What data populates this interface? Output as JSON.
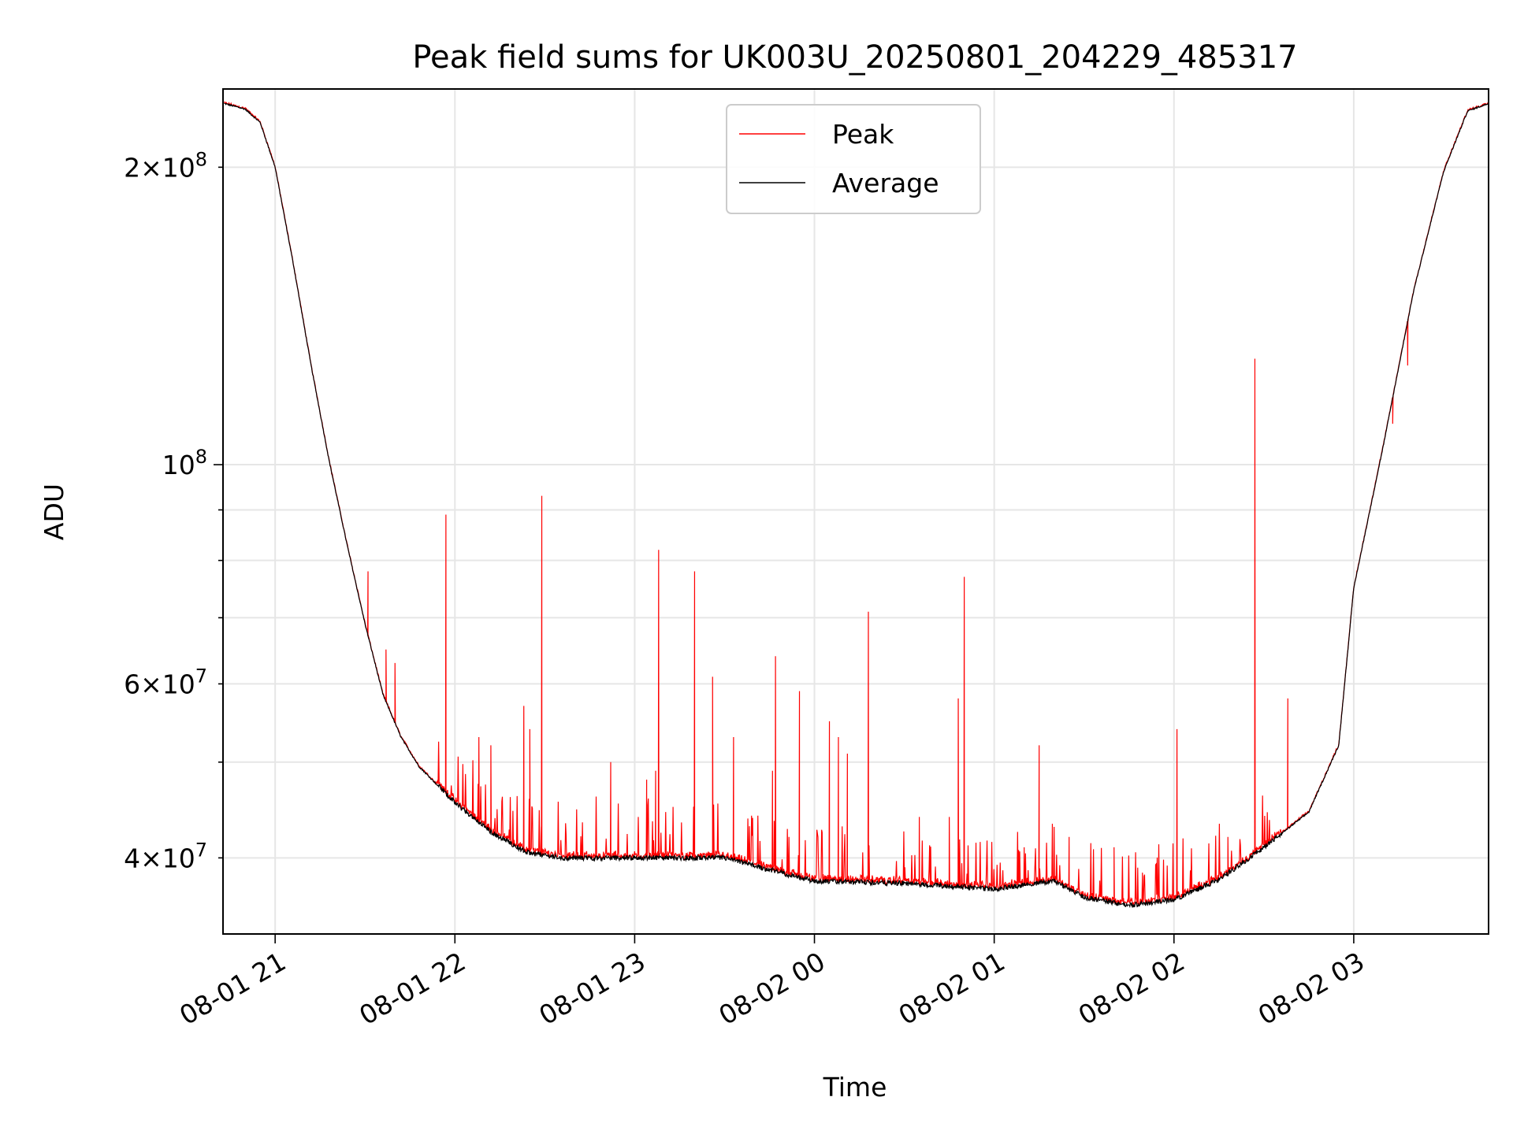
{
  "chart_data": {
    "type": "line",
    "title": "Peak field sums for UK003U_20250801_204229_485317",
    "xlabel": "Time",
    "ylabel": "ADU",
    "y_scale": "log",
    "x_range_hours": [
      20.71,
      27.75
    ],
    "ylim": [
      33500000,
      240000000
    ],
    "x_ticks": [
      {
        "hour": 21,
        "label": "08-01 21"
      },
      {
        "hour": 22,
        "label": "08-01 22"
      },
      {
        "hour": 23,
        "label": "08-01 23"
      },
      {
        "hour": 24,
        "label": "08-02 00"
      },
      {
        "hour": 25,
        "label": "08-02 01"
      },
      {
        "hour": 26,
        "label": "08-02 02"
      },
      {
        "hour": 27,
        "label": "08-02 03"
      }
    ],
    "y_major_ticks": [
      {
        "value": 100000000,
        "mantissa": "",
        "exponent": "8"
      }
    ],
    "y_minor_ticks": [
      {
        "value": 40000000,
        "mantissa": "4",
        "exponent": "7"
      },
      {
        "value": 60000000,
        "mantissa": "6",
        "exponent": "7"
      },
      {
        "value": 200000000,
        "mantissa": "2",
        "exponent": "8"
      }
    ],
    "y_minor_unlabeled": [
      50000000,
      70000000,
      80000000,
      90000000
    ],
    "grid": true,
    "legend_position": "top-center",
    "series": [
      {
        "name": "Peak",
        "color": "#ff0000",
        "line_width": 1.2
      },
      {
        "name": "Average",
        "color": "#000000",
        "line_width": 1.2
      }
    ],
    "x": [
      "08-01 20:43",
      "08-01 20:50",
      "08-01 20:55",
      "08-01 21:00",
      "08-01 21:06",
      "08-01 21:12",
      "08-01 21:18",
      "08-01 21:24",
      "08-01 21:30",
      "08-01 21:36",
      "08-01 21:42",
      "08-01 21:48",
      "08-01 22:00",
      "08-01 22:12",
      "08-01 22:24",
      "08-01 22:36",
      "08-01 23:00",
      "08-01 23:30",
      "08-01 23:48",
      "08-02 00:00",
      "08-02 00:30",
      "08-02 01:00",
      "08-02 01:20",
      "08-02 01:30",
      "08-02 01:45",
      "08-02 02:00",
      "08-02 02:15",
      "08-02 02:30",
      "08-02 02:45",
      "08-02 02:55",
      "08-02 03:00",
      "08-02 03:10",
      "08-02 03:20",
      "08-02 03:30",
      "08-02 03:38",
      "08-02 03:45"
    ],
    "average": [
      232000000,
      229000000,
      222000000,
      200000000,
      160000000,
      126000000,
      101000000,
      83000000,
      69000000,
      58500000,
      53000000,
      49500000,
      45500000,
      42500000,
      40500000,
      40000000,
      40000000,
      40000000,
      38700000,
      37900000,
      37700000,
      37200000,
      37900000,
      36500000,
      35800000,
      36300000,
      38000000,
      41000000,
      44500000,
      52000000,
      75000000,
      105000000,
      150000000,
      198000000,
      228000000,
      232000000
    ],
    "peak_spikes": [
      {
        "time": "08-01 21:19",
        "value": 98000000
      },
      {
        "time": "08-01 21:31",
        "value": 78000000
      },
      {
        "time": "08-01 21:37",
        "value": 65000000
      },
      {
        "time": "08-01 21:40",
        "value": 63000000
      },
      {
        "time": "08-01 21:57",
        "value": 89000000
      },
      {
        "time": "08-01 22:08",
        "value": 53000000
      },
      {
        "time": "08-01 22:12",
        "value": 52000000
      },
      {
        "time": "08-01 22:23",
        "value": 57000000
      },
      {
        "time": "08-01 22:25",
        "value": 54000000
      },
      {
        "time": "08-01 22:29",
        "value": 93000000
      },
      {
        "time": "08-01 22:52",
        "value": 50000000
      },
      {
        "time": "08-01 23:04",
        "value": 48000000
      },
      {
        "time": "08-01 23:07",
        "value": 49000000
      },
      {
        "time": "08-01 23:08",
        "value": 82000000
      },
      {
        "time": "08-01 23:20",
        "value": 78000000
      },
      {
        "time": "08-01 23:26",
        "value": 61000000
      },
      {
        "time": "08-01 23:33",
        "value": 53000000
      },
      {
        "time": "08-01 23:46",
        "value": 49000000
      },
      {
        "time": "08-01 23:47",
        "value": 64000000
      },
      {
        "time": "08-01 23:55",
        "value": 59000000
      },
      {
        "time": "08-02 00:05",
        "value": 55000000
      },
      {
        "time": "08-02 00:08",
        "value": 53000000
      },
      {
        "time": "08-02 00:11",
        "value": 51000000
      },
      {
        "time": "08-02 00:18",
        "value": 71000000
      },
      {
        "time": "08-02 00:35",
        "value": 44000000
      },
      {
        "time": "08-02 00:45",
        "value": 44000000
      },
      {
        "time": "08-02 00:48",
        "value": 58000000
      },
      {
        "time": "08-02 00:50",
        "value": 77000000
      },
      {
        "time": "08-02 01:10",
        "value": 41000000
      },
      {
        "time": "08-02 01:15",
        "value": 52000000
      },
      {
        "time": "08-02 01:20",
        "value": 43000000
      },
      {
        "time": "08-02 01:25",
        "value": 42000000
      },
      {
        "time": "08-02 01:40",
        "value": 41000000
      },
      {
        "time": "08-02 02:01",
        "value": 54000000
      },
      {
        "time": "08-02 02:18",
        "value": 42000000
      },
      {
        "time": "08-02 02:27",
        "value": 128000000
      },
      {
        "time": "08-02 02:38",
        "value": 58000000
      },
      {
        "time": "08-02 03:13",
        "value": 110000000
      },
      {
        "time": "08-02 03:18",
        "value": 126000000
      }
    ]
  }
}
